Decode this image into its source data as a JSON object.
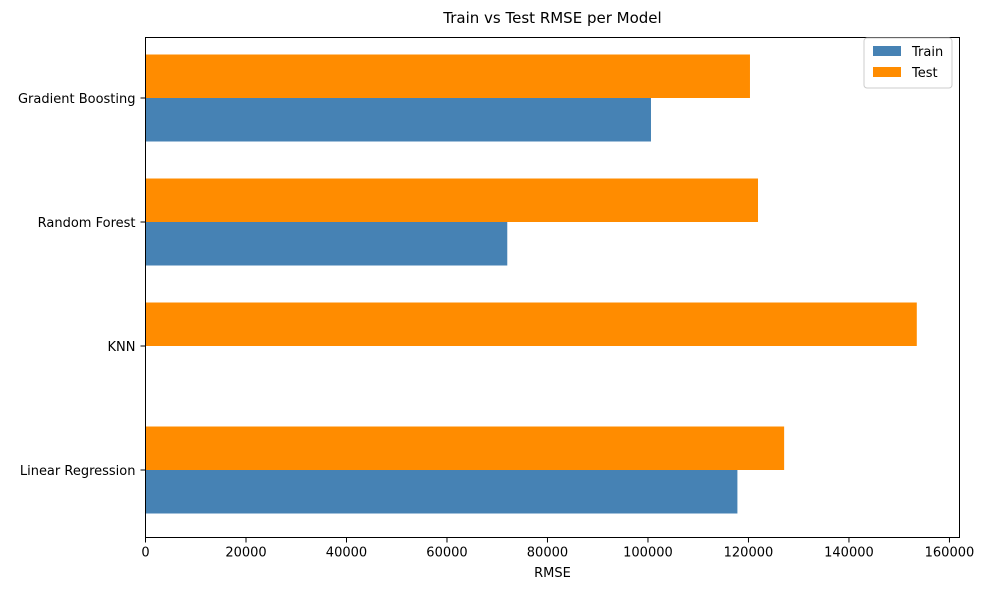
{
  "chart_data": {
    "type": "bar",
    "orientation": "horizontal",
    "title": "Train vs Test RMSE per Model",
    "xlabel": "RMSE",
    "ylabel": "",
    "xlim": [
      0,
      162000
    ],
    "xticks": [
      0,
      20000,
      40000,
      60000,
      80000,
      100000,
      120000,
      140000,
      160000
    ],
    "categories": [
      "Linear Regression",
      "KNN",
      "Random Forest",
      "Gradient Boosting"
    ],
    "series": [
      {
        "name": "Train",
        "color": "#4682b4",
        "values": [
          117800,
          0,
          72000,
          100600
        ]
      },
      {
        "name": "Test",
        "color": "#ff8c00",
        "values": [
          127100,
          153500,
          121900,
          120300
        ]
      }
    ],
    "legend_position": "top-right",
    "grid": false
  }
}
